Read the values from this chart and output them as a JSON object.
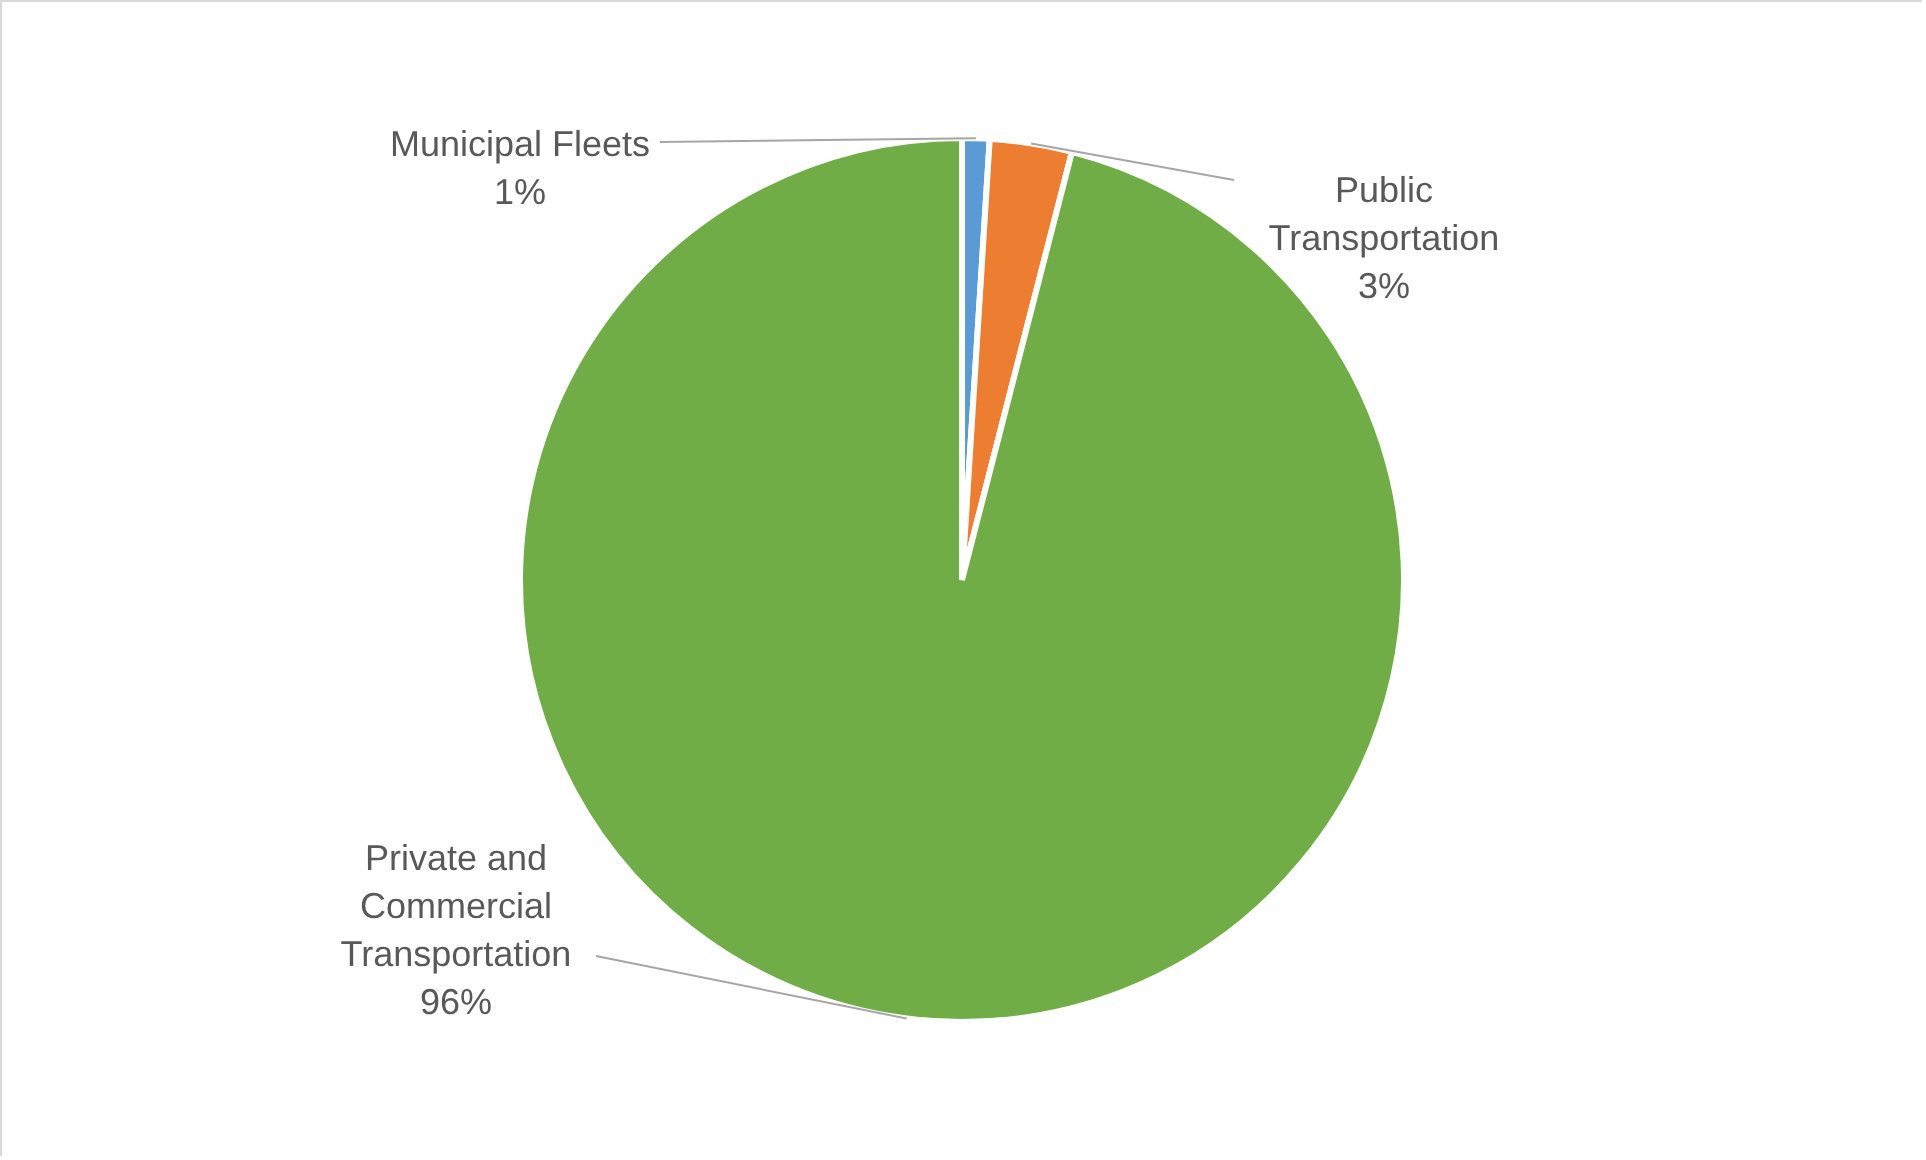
{
  "chart_data": {
    "type": "pie",
    "categories": [
      "Municipal Fleets",
      "Public Transportation",
      "Private and Commercial Transportation"
    ],
    "values": [
      1,
      3,
      96
    ],
    "colors": [
      "#5b9bd5",
      "#ed7d31",
      "#70ad47"
    ],
    "value_labels": [
      "1%",
      "3%",
      "96%"
    ]
  }
}
